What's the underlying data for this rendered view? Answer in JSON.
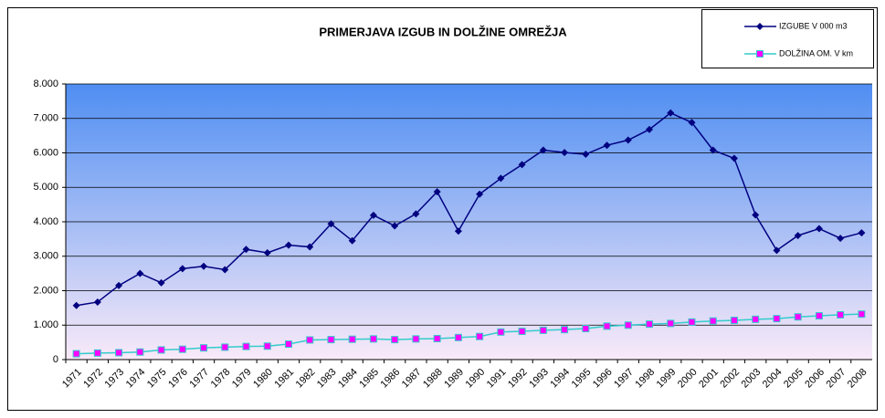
{
  "chart_data": {
    "type": "line",
    "title": "PRIMERJAVA IZGUB IN DOLŽINE OMREŽJA",
    "categories": [
      "1971",
      "1972",
      "1973",
      "1974",
      "1975",
      "1976",
      "1977",
      "1978",
      "1979",
      "1980",
      "1981",
      "1982",
      "1983",
      "1984",
      "1985",
      "1986",
      "1987",
      "1988",
      "1989",
      "1990",
      "1991",
      "1992",
      "1993",
      "1994",
      "1995",
      "1996",
      "1997",
      "1998",
      "1999",
      "2000",
      "2001",
      "2002",
      "2003",
      "2004",
      "2005",
      "2006",
      "2007",
      "2008"
    ],
    "series": [
      {
        "name": "IZGUBE V 000 m3",
        "color": "#000080",
        "marker": "diamond",
        "values": [
          1570,
          1670,
          2150,
          2500,
          2230,
          2640,
          2710,
          2610,
          3200,
          3100,
          3320,
          3270,
          3940,
          3450,
          4190,
          3880,
          4230,
          4870,
          3730,
          4800,
          5260,
          5660,
          6080,
          6010,
          5960,
          6220,
          6370,
          6680,
          7160,
          6880,
          6080,
          5840,
          4200,
          3170,
          3600,
          3800,
          3520,
          3680
        ]
      },
      {
        "name": "DOLŽINA OM.  V km",
        "color": "#33cccc",
        "marker": "square",
        "marker_color": "#ff00ff",
        "values": [
          170,
          190,
          200,
          220,
          280,
          300,
          340,
          360,
          380,
          390,
          450,
          570,
          580,
          590,
          600,
          580,
          600,
          610,
          640,
          670,
          800,
          820,
          850,
          870,
          900,
          970,
          1000,
          1030,
          1050,
          1090,
          1120,
          1140,
          1170,
          1190,
          1240,
          1270,
          1300,
          1320
        ]
      }
    ],
    "ylim": [
      0,
      8000
    ],
    "yticks": [
      0,
      {
        "value": 1000,
        "label": "1.000"
      },
      {
        "value": 2000,
        "label": "2.000"
      },
      {
        "value": 3000,
        "label": "3.000"
      },
      {
        "value": 4000,
        "label": "4.000"
      },
      {
        "value": 5000,
        "label": "5.000"
      },
      {
        "value": 6000,
        "label": "6.000"
      },
      {
        "value": 7000,
        "label": "7.000"
      },
      {
        "value": 8000,
        "label": "8.000"
      }
    ],
    "grid": true,
    "legend": "top-right"
  }
}
